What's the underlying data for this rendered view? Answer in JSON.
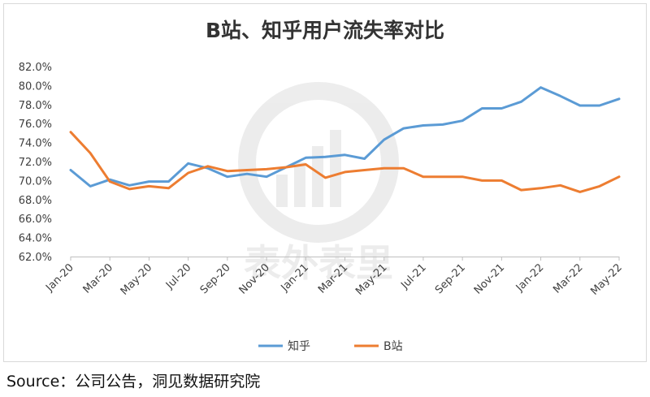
{
  "chart_data": {
    "type": "line",
    "title": "B站、知乎用户流失率对比",
    "x": [
      "Jan-20",
      "Feb-20",
      "Mar-20",
      "Apr-20",
      "May-20",
      "Jun-20",
      "Jul-20",
      "Aug-20",
      "Sep-20",
      "Oct-20",
      "Nov-20",
      "Dec-20",
      "Jan-21",
      "Feb-21",
      "Mar-21",
      "Apr-21",
      "May-21",
      "Jun-21",
      "Jul-21",
      "Aug-21",
      "Sep-21",
      "Oct-21",
      "Nov-21",
      "Dec-21",
      "Jan-22",
      "Feb-22",
      "Mar-22",
      "Apr-22",
      "May-22"
    ],
    "x_tick_labels": [
      "Jan-20",
      "Mar-20",
      "May-20",
      "Jul-20",
      "Sep-20",
      "Nov-20",
      "Jan-21",
      "Mar-21",
      "May-21",
      "Jul-21",
      "Sep-21",
      "Nov-21",
      "Jan-22",
      "Mar-22",
      "May-22"
    ],
    "series": [
      {
        "name": "知乎",
        "color": "#5b9bd5",
        "values": [
          71.1,
          69.4,
          70.1,
          69.5,
          69.9,
          69.9,
          71.8,
          71.3,
          70.4,
          70.7,
          70.4,
          71.4,
          72.4,
          72.5,
          72.7,
          72.3,
          74.3,
          75.5,
          75.8,
          75.9,
          76.3,
          77.6,
          77.6,
          78.3,
          79.8,
          78.9,
          77.9,
          77.9,
          78.6
        ]
      },
      {
        "name": "B站",
        "color": "#ed7d31",
        "values": [
          75.1,
          72.9,
          69.9,
          69.1,
          69.4,
          69.2,
          70.8,
          71.5,
          71.0,
          71.1,
          71.2,
          71.4,
          71.7,
          70.3,
          70.9,
          71.1,
          71.3,
          71.3,
          70.4,
          70.4,
          70.4,
          70.0,
          70.0,
          69.0,
          69.2,
          69.5,
          68.8,
          69.4,
          70.4
        ]
      }
    ],
    "y_ticks": [
      "62.0%",
      "64.0%",
      "66.0%",
      "68.0%",
      "70.0%",
      "72.0%",
      "74.0%",
      "76.0%",
      "78.0%",
      "80.0%",
      "82.0%"
    ],
    "ylim": [
      62,
      82
    ],
    "grid": false,
    "legend_position": "bottom"
  },
  "watermark": "表外表里",
  "source_text": "Source：公司公告，洞见数据研究院"
}
